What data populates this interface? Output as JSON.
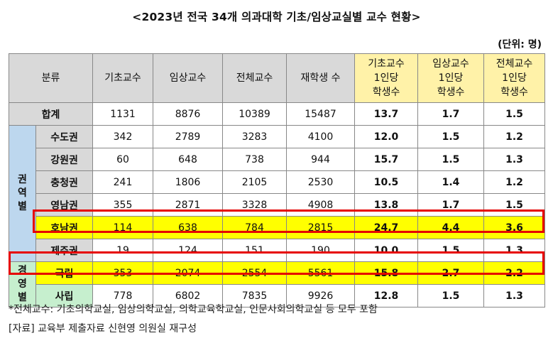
{
  "title": "<2023년 전국 34개 의과대학 기초/임상교실별 교수 현황>",
  "unit": "(단위: 명)",
  "headers": {
    "category": "분류",
    "basic": "기초교수",
    "clinical": "임상교수",
    "total": "전체교수",
    "students": "재학생 수",
    "basic_ratio": [
      "기초교수",
      "1인당",
      "학생수"
    ],
    "clinical_ratio": [
      "임상교수",
      "1인당",
      "학생수"
    ],
    "total_ratio": [
      "전체교수",
      "1인당",
      "학생수"
    ]
  },
  "total_row": {
    "label": "합계",
    "values": [
      "1131",
      "8876",
      "10389",
      "15487",
      "13.7",
      "1.7",
      "1.5"
    ]
  },
  "region_group": {
    "label": [
      "권",
      "역",
      "별"
    ],
    "rows": [
      {
        "label": "수도권",
        "values": [
          "342",
          "2789",
          "3283",
          "4100",
          "12.0",
          "1.5",
          "1.2"
        ],
        "highlight": false
      },
      {
        "label": "강원권",
        "values": [
          "60",
          "648",
          "738",
          "944",
          "15.7",
          "1.5",
          "1.3"
        ],
        "highlight": false
      },
      {
        "label": "충청권",
        "values": [
          "241",
          "1806",
          "2105",
          "2530",
          "10.5",
          "1.4",
          "1.2"
        ],
        "highlight": false
      },
      {
        "label": "영남권",
        "values": [
          "355",
          "2871",
          "3328",
          "4908",
          "13.8",
          "1.7",
          "1.5"
        ],
        "highlight": false
      },
      {
        "label": "호남권",
        "values": [
          "114",
          "638",
          "784",
          "2815",
          "24.7",
          "4.4",
          "3.6"
        ],
        "highlight": true
      },
      {
        "label": "제주권",
        "values": [
          "19",
          "124",
          "151",
          "190",
          "10.0",
          "1.5",
          "1.3"
        ],
        "highlight": false
      }
    ]
  },
  "mgmt_group": {
    "label": [
      "경",
      "영",
      "별"
    ],
    "rows": [
      {
        "label": "국립",
        "values": [
          "353",
          "2074",
          "2554",
          "5561",
          "15.8",
          "2.7",
          "2.2"
        ],
        "highlight": true
      },
      {
        "label": "사립",
        "values": [
          "778",
          "6802",
          "7835",
          "9926",
          "12.8",
          "1.5",
          "1.3"
        ],
        "highlight": false
      }
    ]
  },
  "notes": [
    "*전체교수: 기초의학교실, 임상의학교실, 의학교육학교실, 인문사회의학교실 등 모두 포함",
    "[자료] 교육부 제출자료 신현영 의원실 재구성"
  ],
  "colors": {
    "header_gray": "#d9d9d9",
    "header_yellow": "#fff2a8",
    "highlight": "#ffff00",
    "region_blue": "#bdd7ee",
    "mgmt_green": "#c6efce",
    "red_box": "#e60000"
  }
}
